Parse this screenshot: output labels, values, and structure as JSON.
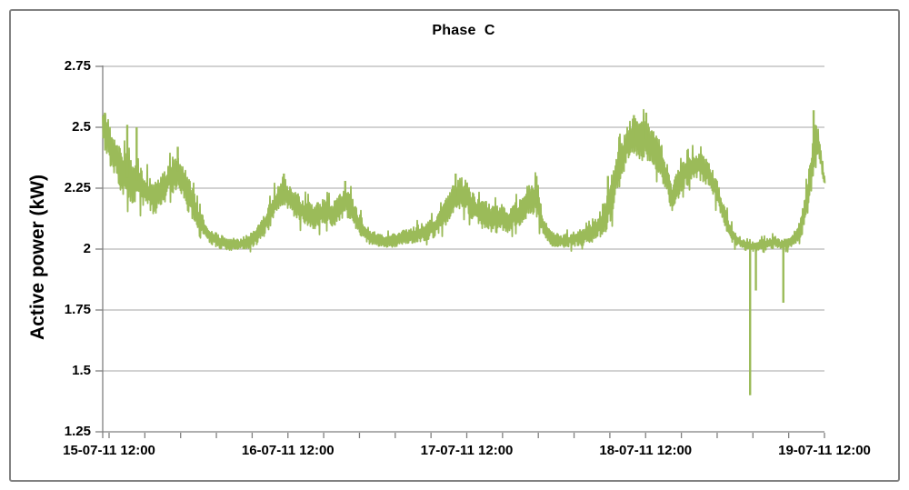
{
  "chart": {
    "title": "Phase  C",
    "y_axis": {
      "label": "Active power (kW)"
    }
  },
  "chart_data": {
    "type": "line",
    "title": "Phase C",
    "ylabel": "Active power (kW)",
    "xlabel": "",
    "ylim": [
      1.25,
      2.75
    ],
    "y_ticks": [
      {
        "label": "2.75",
        "value": 2.75
      },
      {
        "label": "2.5",
        "value": 2.5
      },
      {
        "label": "2.25",
        "value": 2.25
      },
      {
        "label": "2",
        "value": 2.0
      },
      {
        "label": "1.75",
        "value": 1.75
      },
      {
        "label": "1.5",
        "value": 1.5
      },
      {
        "label": "1.25",
        "value": 1.25
      }
    ],
    "x_ticks": [
      "15-07-11 12:00",
      "16-07-11 12:00",
      "17-07-11 12:00",
      "18-07-11 12:00",
      "19-07-11 12:00"
    ],
    "x_minor_divisions": 20,
    "grid": "horizontal",
    "legend": "none",
    "colors": {
      "series": "#9BBB59",
      "grid": "#A4A4A4",
      "axis": "#7F7F7F",
      "border": "#818181",
      "text": "#000000"
    },
    "series": [
      {
        "name": "Phase C",
        "x_unit": "fraction of x-axis (15-07-11 ~11:00 through 19-07-11 12:00)",
        "envelope_format": [
          "x_fraction",
          "center_kW",
          "half_band_kW"
        ],
        "envelope": [
          [
            0.0,
            2.5,
            0.06
          ],
          [
            0.004,
            2.47,
            0.09
          ],
          [
            0.01,
            2.43,
            0.1
          ],
          [
            0.017,
            2.38,
            0.1
          ],
          [
            0.024,
            2.33,
            0.1
          ],
          [
            0.031,
            2.3,
            0.1
          ],
          [
            0.038,
            2.28,
            0.09
          ],
          [
            0.047,
            2.28,
            0.11
          ],
          [
            0.054,
            2.26,
            0.08
          ],
          [
            0.06,
            2.24,
            0.08
          ],
          [
            0.067,
            2.22,
            0.07
          ],
          [
            0.073,
            2.21,
            0.08
          ],
          [
            0.079,
            2.24,
            0.07
          ],
          [
            0.086,
            2.26,
            0.07
          ],
          [
            0.092,
            2.29,
            0.07
          ],
          [
            0.099,
            2.31,
            0.08
          ],
          [
            0.104,
            2.32,
            0.08
          ],
          [
            0.11,
            2.28,
            0.08
          ],
          [
            0.116,
            2.24,
            0.08
          ],
          [
            0.122,
            2.2,
            0.08
          ],
          [
            0.128,
            2.16,
            0.06
          ],
          [
            0.134,
            2.12,
            0.05
          ],
          [
            0.142,
            2.08,
            0.04
          ],
          [
            0.15,
            2.05,
            0.035
          ],
          [
            0.162,
            2.03,
            0.03
          ],
          [
            0.176,
            2.02,
            0.028
          ],
          [
            0.19,
            2.02,
            0.028
          ],
          [
            0.202,
            2.03,
            0.03
          ],
          [
            0.212,
            2.05,
            0.035
          ],
          [
            0.222,
            2.09,
            0.045
          ],
          [
            0.23,
            2.13,
            0.05
          ],
          [
            0.237,
            2.18,
            0.06
          ],
          [
            0.244,
            2.22,
            0.06
          ],
          [
            0.251,
            2.24,
            0.065
          ],
          [
            0.259,
            2.21,
            0.06
          ],
          [
            0.268,
            2.18,
            0.06
          ],
          [
            0.278,
            2.15,
            0.065
          ],
          [
            0.288,
            2.13,
            0.06
          ],
          [
            0.298,
            2.14,
            0.06
          ],
          [
            0.307,
            2.16,
            0.055
          ],
          [
            0.317,
            2.14,
            0.06
          ],
          [
            0.327,
            2.17,
            0.055
          ],
          [
            0.336,
            2.2,
            0.065
          ],
          [
            0.344,
            2.17,
            0.06
          ],
          [
            0.352,
            2.12,
            0.05
          ],
          [
            0.361,
            2.08,
            0.04
          ],
          [
            0.37,
            2.05,
            0.035
          ],
          [
            0.382,
            2.04,
            0.03
          ],
          [
            0.394,
            2.03,
            0.03
          ],
          [
            0.407,
            2.04,
            0.03
          ],
          [
            0.42,
            2.05,
            0.035
          ],
          [
            0.432,
            2.06,
            0.035
          ],
          [
            0.443,
            2.07,
            0.04
          ],
          [
            0.452,
            2.08,
            0.04
          ],
          [
            0.46,
            2.09,
            0.045
          ],
          [
            0.469,
            2.12,
            0.05
          ],
          [
            0.478,
            2.17,
            0.06
          ],
          [
            0.487,
            2.21,
            0.07
          ],
          [
            0.496,
            2.23,
            0.07
          ],
          [
            0.505,
            2.21,
            0.07
          ],
          [
            0.514,
            2.17,
            0.065
          ],
          [
            0.523,
            2.14,
            0.06
          ],
          [
            0.532,
            2.14,
            0.06
          ],
          [
            0.541,
            2.12,
            0.06
          ],
          [
            0.551,
            2.13,
            0.06
          ],
          [
            0.561,
            2.12,
            0.055
          ],
          [
            0.571,
            2.14,
            0.055
          ],
          [
            0.58,
            2.16,
            0.06
          ],
          [
            0.588,
            2.19,
            0.07
          ],
          [
            0.598,
            2.22,
            0.08
          ],
          [
            0.606,
            2.14,
            0.06
          ],
          [
            0.614,
            2.07,
            0.04
          ],
          [
            0.624,
            2.04,
            0.032
          ],
          [
            0.638,
            2.03,
            0.03
          ],
          [
            0.652,
            2.04,
            0.032
          ],
          [
            0.666,
            2.05,
            0.035
          ],
          [
            0.68,
            2.07,
            0.04
          ],
          [
            0.691,
            2.11,
            0.06
          ],
          [
            0.7,
            2.17,
            0.09
          ],
          [
            0.708,
            2.25,
            0.09
          ],
          [
            0.715,
            2.33,
            0.09
          ],
          [
            0.723,
            2.41,
            0.09
          ],
          [
            0.731,
            2.45,
            0.09
          ],
          [
            0.739,
            2.46,
            0.09
          ],
          [
            0.746,
            2.44,
            0.09
          ],
          [
            0.753,
            2.45,
            0.09
          ],
          [
            0.761,
            2.42,
            0.09
          ],
          [
            0.768,
            2.39,
            0.08
          ],
          [
            0.776,
            2.34,
            0.08
          ],
          [
            0.783,
            2.27,
            0.07
          ],
          [
            0.789,
            2.21,
            0.07
          ],
          [
            0.796,
            2.26,
            0.06
          ],
          [
            0.804,
            2.3,
            0.06
          ],
          [
            0.813,
            2.33,
            0.06
          ],
          [
            0.822,
            2.35,
            0.06
          ],
          [
            0.831,
            2.33,
            0.06
          ],
          [
            0.839,
            2.31,
            0.06
          ],
          [
            0.847,
            2.26,
            0.06
          ],
          [
            0.854,
            2.2,
            0.06
          ],
          [
            0.862,
            2.13,
            0.05
          ],
          [
            0.869,
            2.07,
            0.04
          ],
          [
            0.877,
            2.04,
            0.03
          ],
          [
            0.886,
            2.02,
            0.022
          ],
          [
            0.895,
            2.01,
            0.02
          ],
          [
            0.904,
            2.01,
            0.02
          ],
          [
            0.913,
            2.02,
            0.022
          ],
          [
            0.922,
            2.02,
            0.025
          ],
          [
            0.931,
            2.03,
            0.025
          ],
          [
            0.94,
            2.02,
            0.02
          ],
          [
            0.949,
            2.02,
            0.022
          ],
          [
            0.957,
            2.04,
            0.028
          ],
          [
            0.964,
            2.07,
            0.035
          ],
          [
            0.97,
            2.12,
            0.055
          ],
          [
            0.976,
            2.21,
            0.07
          ],
          [
            0.982,
            2.33,
            0.08
          ],
          [
            0.987,
            2.44,
            0.075
          ],
          [
            0.991,
            2.45,
            0.06
          ],
          [
            0.995,
            2.37,
            0.05
          ],
          [
            0.998,
            2.3,
            0.03
          ],
          [
            1.0,
            2.28,
            0.02
          ]
        ],
        "spikes_up": [
          [
            0.003,
            2.56
          ],
          [
            0.034,
            2.51
          ],
          [
            0.047,
            2.5
          ],
          [
            0.104,
            2.42
          ],
          [
            0.251,
            2.31
          ],
          [
            0.336,
            2.28
          ],
          [
            0.489,
            2.31
          ],
          [
            0.601,
            2.3
          ],
          [
            0.7,
            2.3
          ],
          [
            0.736,
            2.55
          ],
          [
            0.753,
            2.56
          ],
          [
            0.985,
            2.57
          ]
        ],
        "spikes_down": [
          [
            0.897,
            1.4
          ],
          [
            0.905,
            1.83
          ],
          [
            0.943,
            1.78
          ]
        ]
      }
    ]
  }
}
